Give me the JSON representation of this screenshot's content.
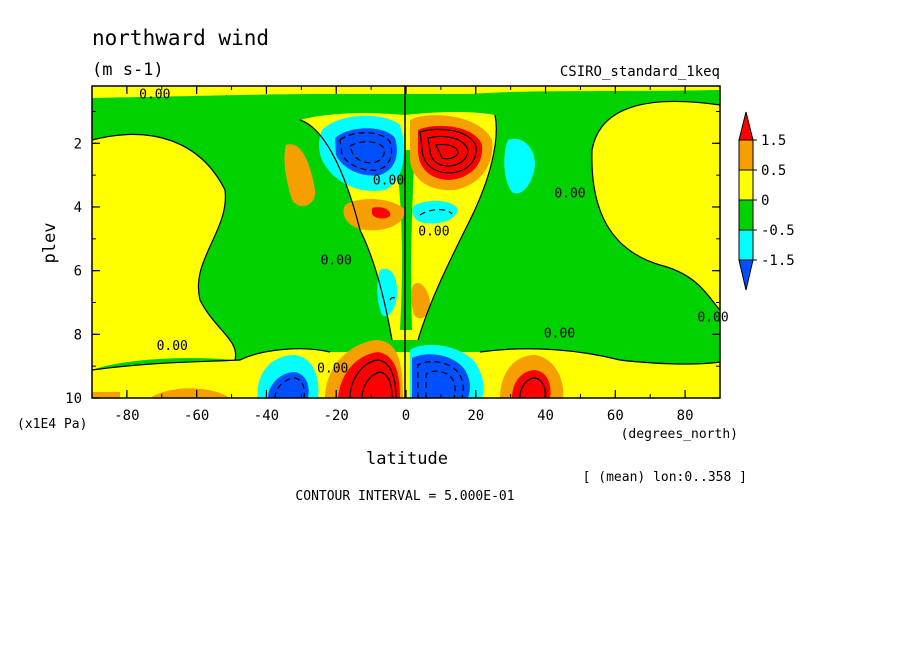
{
  "chart_data": {
    "type": "contour",
    "title": "northward wind",
    "units": "(m s-1)",
    "model": "CSIRO_standard_1keq",
    "xlabel": "latitude",
    "x_units": "(degrees_north)",
    "ylabel": "plev",
    "y_units": "(x1E4 Pa)",
    "xlim": [
      -90,
      90
    ],
    "ylim": [
      10,
      0.2
    ],
    "x_ticks": [
      "-80",
      "-60",
      "-40",
      "-20",
      "0",
      "20",
      "40",
      "60",
      "80"
    ],
    "x_tick_values": [
      -80,
      -60,
      -40,
      -20,
      0,
      20,
      40,
      60,
      80
    ],
    "y_ticks": [
      "2",
      "4",
      "6",
      "8",
      "10"
    ],
    "y_tick_values": [
      2,
      4,
      6,
      8,
      10
    ],
    "legend_levels": [
      "1.5",
      "0.5",
      "0",
      "-0.5",
      "-1.5"
    ],
    "legend_colors": [
      "#ff0000",
      "#f5a000",
      "#ffff00",
      "#00d200",
      "#00ffff",
      "#0050ff"
    ],
    "contour_labels": [
      {
        "text": "0.00",
        "lat": -72,
        "plev": 0.6
      },
      {
        "text": "0.00",
        "lat": -67,
        "plev": 8.5
      },
      {
        "text": "0.00",
        "lat": -5,
        "plev": 3.3
      },
      {
        "text": "0.00",
        "lat": 8,
        "plev": 4.9
      },
      {
        "text": "0.00",
        "lat": -20,
        "plev": 5.8
      },
      {
        "text": "0.00",
        "lat": 44,
        "plev": 8.1
      },
      {
        "text": "0.00",
        "lat": 47,
        "plev": 3.7
      },
      {
        "text": "0.00",
        "lat": 88,
        "plev": 7.6
      },
      {
        "text": "0.00",
        "lat": -21,
        "plev": 9.2
      }
    ],
    "fields": [
      {
        "level": "max",
        "lat": 8,
        "plev": 2.3,
        "value": 2.0
      },
      {
        "level": "min",
        "lat": -10,
        "plev": 2.2,
        "value": -2.0
      },
      {
        "level": "max",
        "lat": -7,
        "plev": 4.0,
        "value": 1.0
      },
      {
        "level": "min",
        "lat": 8,
        "plev": 4.0,
        "value": -0.7
      },
      {
        "level": "max",
        "lat": -7,
        "plev": 9.5,
        "value": 2.5
      },
      {
        "level": "min",
        "lat": 7,
        "plev": 9.5,
        "value": -2.5
      },
      {
        "level": "max",
        "lat": 33,
        "plev": 9.6,
        "value": 1.6
      },
      {
        "level": "min",
        "lat": -35,
        "plev": 9.5,
        "value": -1.0
      }
    ],
    "grid": false,
    "legend_placement": "right"
  },
  "footer": {
    "interval": "CONTOUR INTERVAL = 5.000E-01",
    "mean": "[ (mean) lon:0..358 ]"
  }
}
